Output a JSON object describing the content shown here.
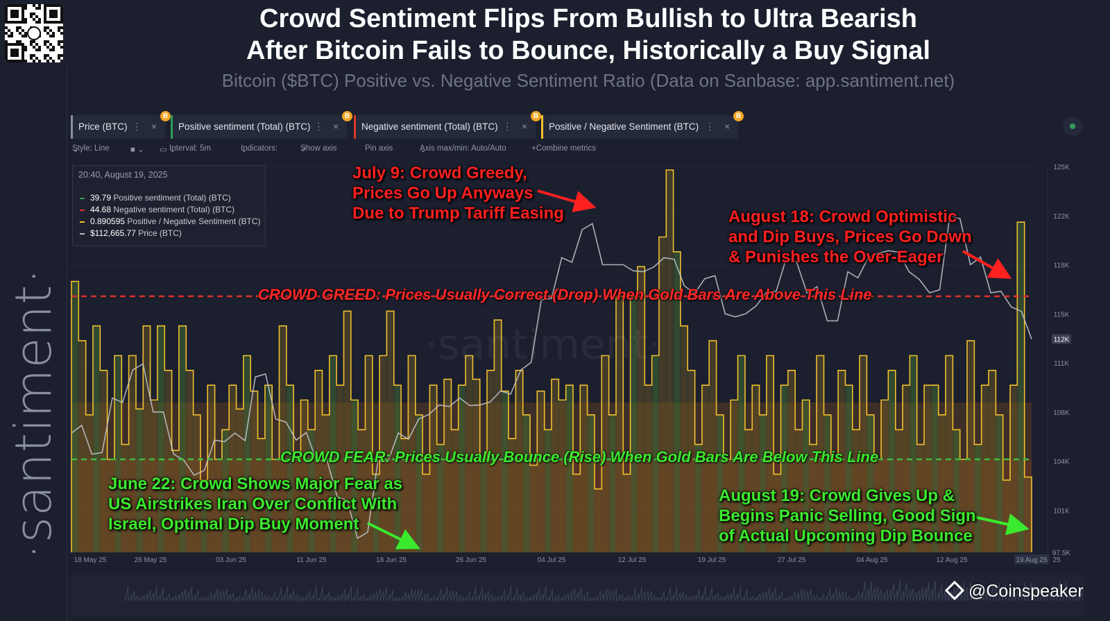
{
  "header": {
    "title_line1": "Crowd Sentiment Flips From Bullish to Ultra Bearish",
    "title_line2": "After Bitcoin Fails to Bounce, Historically a Buy Signal",
    "subtitle": "Bitcoin ($BTC) Positive vs. Negative Sentiment Ratio (Data on Sanbase: app.santiment.net)"
  },
  "brand": {
    "vertical_text": "·santiment·",
    "watermark": "·santiment·",
    "credit": "@Coinspeaker"
  },
  "metric_chips": [
    {
      "label": "Price (BTC)",
      "color": "#8a8f9e"
    },
    {
      "label": "Positive sentiment (Total) (BTC)",
      "color": "#2e9e57"
    },
    {
      "label": "Negative sentiment (Total) (BTC)",
      "color": "#d9382f"
    },
    {
      "label": "Positive / Negative Sentiment (BTC)",
      "color": "#f2c12e"
    }
  ],
  "toolbar": {
    "style": "Style: Line",
    "interval": "Interval: 5m",
    "indicators": "Indicators:",
    "show_axis": "Show axis",
    "pin_axis": "Pin axis",
    "axis_minmax": "Axis max/min: Auto/Auto",
    "combine": "Combine metrics"
  },
  "tooltip": {
    "timestamp": "20:40, August 19, 2025",
    "rows": [
      {
        "value": "39.79",
        "label": "Positive sentiment (Total) (BTC)",
        "color": "#2e9e57"
      },
      {
        "value": "44.68",
        "label": "Negative sentiment (Total) (BTC)",
        "color": "#d9382f"
      },
      {
        "value": "0.890595",
        "label": "Positive / Negative Sentiment (BTC)",
        "color": "#f2c12e"
      },
      {
        "value": "$112,665.77",
        "label": "Price (BTC)",
        "color": "#b9bcc6"
      }
    ]
  },
  "annotations": {
    "july9": [
      "July 9: Crowd Greedy,",
      "Prices Go Up Anyways",
      "Due to Trump Tariff Easing"
    ],
    "aug18": [
      "August 18: Crowd Optimistic",
      "and Dip Buys, Prices Go Down",
      "& Punishes the Over-Eager"
    ],
    "june22": [
      "June 22: Crowd Shows Major Fear as",
      "US Airstrikes Iran Over Conflict With",
      "Israel, Optimal Dip Buy Moment"
    ],
    "aug19": [
      "August 19: Crowd Gives Up &",
      "Begins Panic Selling, Good Sign",
      "of Actual Upcoming Dip Bounce"
    ],
    "greed_line": "CROWD GREED: Prices Usually Correct (Drop) When Gold Bars Are Above This Line",
    "fear_line": "CROWD FEAR: Prices Usually Bounce (Rise) When Gold Bars Are Below This Line"
  },
  "colors": {
    "greed_line": "#e0312b",
    "fear_line": "#3fbf3a",
    "ratio_bars": "#f2c12e",
    "price_line": "#c7c9d0"
  },
  "chart_data": {
    "type": "line",
    "x_tick_labels": [
      "18 May 25",
      "26 May 25",
      "03 Jun 25",
      "11 Jun 25",
      "18 Jun 25",
      "26 Jun 25",
      "04 Jul 25",
      "12 Jul 25",
      "19 Jul 25",
      "27 Jul 25",
      "04 Aug 25",
      "12 Aug 25",
      "19 Aug 25"
    ],
    "x_end_label": "25",
    "y_tick_labels": [
      "125K",
      "122K",
      "118K",
      "115K",
      "111K",
      "108K",
      "104K",
      "101K",
      "97.5K"
    ],
    "y_tick_values": [
      125000,
      121500,
      118000,
      114500,
      111000,
      107500,
      104000,
      100500,
      97500
    ],
    "ylim": [
      97500,
      125000
    ],
    "current_price_label": "112K",
    "series": [
      {
        "name": "Price (BTC)",
        "values": [
          106000,
          104500,
          108500,
          110500,
          107500,
          104500,
          103000,
          105500,
          106000,
          110000,
          107000,
          105500,
          104000,
          101500,
          98500,
          104000,
          106000,
          107000,
          108000,
          108500,
          108000,
          109000,
          110500,
          115500,
          118500,
          120500,
          118000,
          118000,
          117500,
          118500,
          116500,
          117000,
          114500,
          114500,
          116000,
          118500,
          116000,
          114000,
          117500,
          118500,
          119000,
          117500,
          116000,
          121500,
          118000,
          116000,
          115000,
          112700
        ]
      },
      {
        "name": "Positive / Negative Sentiment (BTC)",
        "values": [
          1.55,
          1.35,
          1.1,
          1.4,
          1.25,
          0.95,
          1.3,
          1.0,
          1.3,
          1.12,
          1.4,
          1.15,
          1.4,
          1.25,
          0.98,
          1.4,
          1.25,
          1.1,
          0.88,
          1.2,
          0.95,
          1.05,
          1.2,
          1.12,
          1.3,
          1.18,
          1.02,
          1.2,
          0.95,
          1.4,
          1.2,
          0.95,
          1.15,
          1.05,
          1.25,
          1.1,
          1.3,
          1.2,
          1.45,
          1.15,
          1.05,
          1.3,
          0.9,
          1.3,
          1.45,
          1.2,
          1.02,
          1.3,
          1.1,
          0.9,
          1.2,
          1.0,
          1.22,
          1.05,
          1.2,
          1.3,
          1.22,
          0.95,
          1.25,
          1.42,
          1.18,
          1.02,
          1.25,
          1.1,
          0.93,
          1.18,
          1.05,
          1.22,
          1.15,
          1.2,
          0.9,
          1.2,
          1.1,
          0.85,
          1.3,
          1.1,
          1.5,
          0.9,
          1.5,
          1.6,
          1.2,
          1.3,
          1.7,
          1.95,
          1.65,
          1.4,
          1.25,
          1.0,
          1.2,
          1.35,
          1.1,
          0.95,
          1.15,
          1.3,
          1.05,
          1.2,
          1.1,
          1.3,
          0.9,
          1.2,
          1.25,
          1.05,
          1.15,
          1.0,
          1.3,
          1.1,
          0.95,
          1.25,
          1.2,
          1.05,
          1.3,
          1.1,
          0.95,
          1.15,
          1.25,
          1.05,
          1.2,
          1.3,
          1.0,
          1.2,
          1.2,
          1.1,
          1.3,
          1.05,
          0.95,
          1.35,
          1.0,
          1.2,
          1.25,
          1.1,
          0.88,
          1.2,
          1.75,
          0.89
        ]
      }
    ],
    "greed_threshold": 1.5,
    "fear_threshold": 0.95
  }
}
